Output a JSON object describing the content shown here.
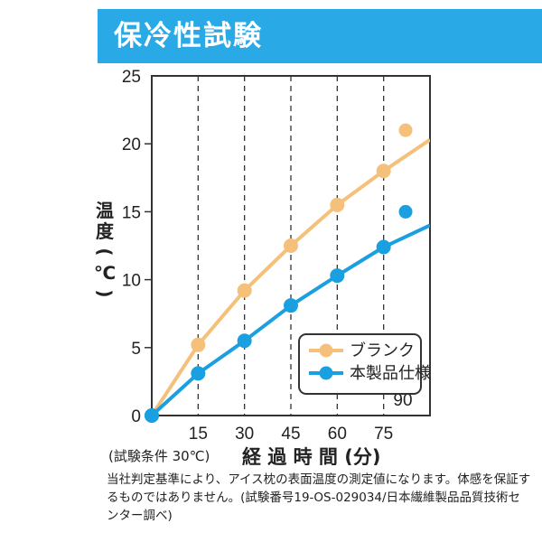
{
  "header": {
    "title": "保冷性試験"
  },
  "chart_data": {
    "type": "line",
    "title": "",
    "ylabel_chars": [
      "温",
      "度",
      "(",
      "℃",
      ")"
    ],
    "xlabel": "経 過 時 間 (分)",
    "x_ticks": [
      15,
      30,
      45,
      60,
      75
    ],
    "x_extra_tick": "90",
    "xlim": [
      0,
      90
    ],
    "y_ticks": [
      0,
      5,
      10,
      15,
      20,
      25
    ],
    "ylim": [
      0,
      25
    ],
    "grid": "vertical dashed",
    "legend_placement": "bottom-right",
    "series": [
      {
        "name": "ブランク",
        "color": "#f5c07a",
        "x": [
          0,
          15,
          30,
          45,
          60,
          75
        ],
        "y": [
          0,
          5.2,
          9.2,
          12.5,
          15.5,
          18
        ],
        "line_end": [
          90,
          20.3
        ],
        "marker_at_90": 21
      },
      {
        "name": "本製品仕様",
        "color": "#1aa0e0",
        "x": [
          0,
          15,
          30,
          45,
          60,
          75
        ],
        "y": [
          0,
          3.1,
          5.5,
          8.1,
          10.3,
          12.4
        ],
        "line_end": [
          90,
          14
        ],
        "marker_at_90": 15
      }
    ]
  },
  "condition_note": "(試験条件 30℃)",
  "footnote": "当社判定基準により、アイス枕の表面温度の測定値になります。体感を保証するものではありません。(試験番号19-OS-029034/日本繊維製品品質技術センター調べ)"
}
